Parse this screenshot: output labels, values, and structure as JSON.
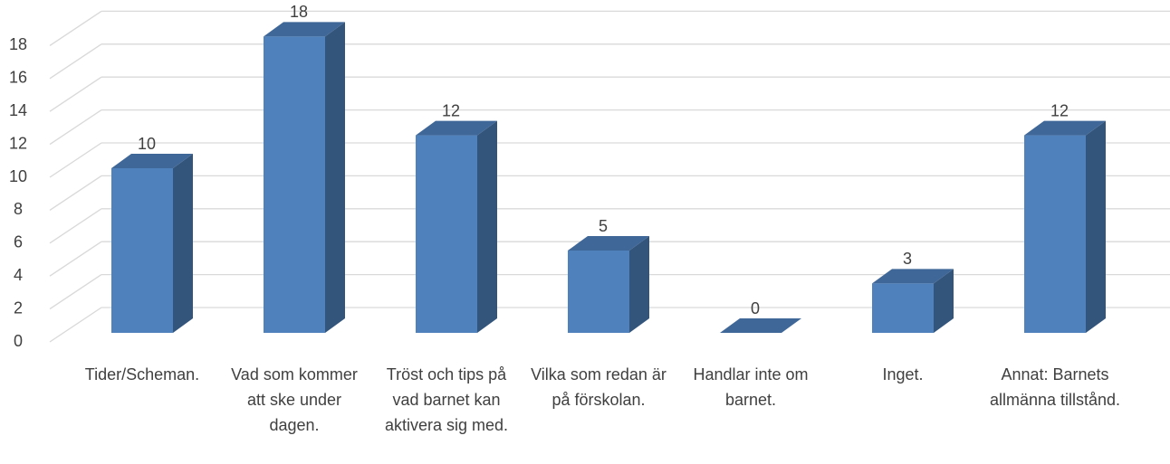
{
  "chart_data": {
    "type": "bar3d",
    "categories": [
      "Tider/Scheman.",
      "Vad som kommer att ske under dagen.",
      "Tröst och tips på vad barnet kan aktivera sig med.",
      "Vilka som redan är på förskolan.",
      "Handlar inte om barnet.",
      "Inget.",
      "Annat: Barnets allmänna tillstånd."
    ],
    "values": [
      10,
      18,
      12,
      5,
      0,
      3,
      12
    ],
    "color": "#4f81bd",
    "ylim": [
      0,
      18
    ],
    "yticks": [
      0,
      2,
      4,
      6,
      8,
      10,
      12,
      14,
      16,
      18
    ],
    "grid": true
  }
}
